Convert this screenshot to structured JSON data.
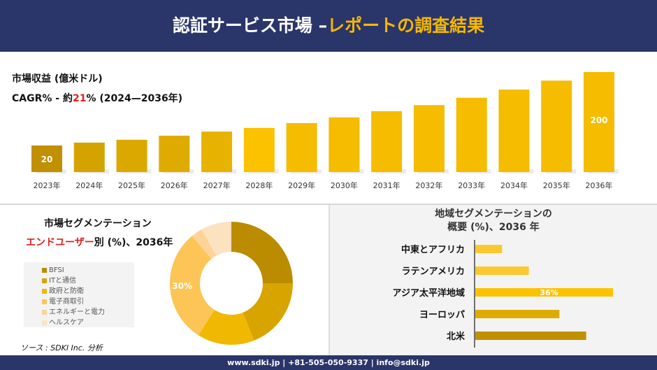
{
  "header": {
    "title_main": "認証サービス市場 –",
    "title_accent": "レポートの調査結果"
  },
  "revenue": {
    "label": "市場収益 (億米ドル)",
    "cagr_prefix": "CAGR% - 約",
    "cagr_value": "21",
    "cagr_suffix": "% (2024—2036年)"
  },
  "chart_data": [
    {
      "type": "bar",
      "title": "市場収益 (億米ドル)",
      "categories": [
        "2023年",
        "2024年",
        "2025年",
        "2026年",
        "2027年",
        "2028年",
        "2029年",
        "2030年",
        "2031年",
        "2032年",
        "2033年",
        "2034年",
        "2035年",
        "2036年"
      ],
      "values": [
        20,
        27,
        34,
        44,
        54,
        63,
        75,
        89,
        104,
        119,
        137,
        157,
        179,
        200
      ],
      "data_labels": {
        "2023年": "20",
        "2036年": "200"
      },
      "colors": [
        "#c09000",
        "#d4a300",
        "#dba800",
        "#e0ab00",
        "#e8b200",
        "#fcc200",
        "#f5bc00",
        "#f5bc00",
        "#f5bc00",
        "#f5bc00",
        "#f5bc00",
        "#f5bc00",
        "#f5bc00",
        "#f5bc00"
      ],
      "grid": false
    },
    {
      "type": "pie",
      "donut": true,
      "title": "市場セグメンテーション",
      "subtitle_accent": "エンドユーザー",
      "subtitle_rest": "別 (%)、2036年",
      "series": [
        {
          "name": "BFSI",
          "value": 25,
          "color": "#bb8c00"
        },
        {
          "name": "ITと通信",
          "value": 19,
          "color": "#d8a400"
        },
        {
          "name": "政府と防衛",
          "value": 15,
          "color": "#f0b800"
        },
        {
          "name": "電子商取引",
          "value": 30,
          "color": "#fcc556",
          "label": "30%"
        },
        {
          "name": "エネルギーと電力",
          "value": 3,
          "color": "#fdd398"
        },
        {
          "name": "ヘルスケア",
          "value": 8,
          "color": "#fde2c0"
        }
      ],
      "legend": "left"
    },
    {
      "type": "bar",
      "orientation": "horizontal",
      "title_line1": "地域セグメンテーションの",
      "title_line2": "概要 (%)、2036 年",
      "categories": [
        "中東とアフリカ",
        "ラテンアメリカ",
        "アジア太平洋地域",
        "ヨーロッパ",
        "北米"
      ],
      "values": [
        7,
        14,
        36,
        22,
        29
      ],
      "data_labels": {
        "アジア太平洋地域": "36%"
      },
      "colors": [
        "#fcc830",
        "#fcc830",
        "#fcc200",
        "#e0ab00",
        "#c09000"
      ]
    }
  ],
  "source": "ソース : SDKI Inc. 分析",
  "footer": "www.sdki.jp | +81-505-050-9337 | info@sdki.jp"
}
